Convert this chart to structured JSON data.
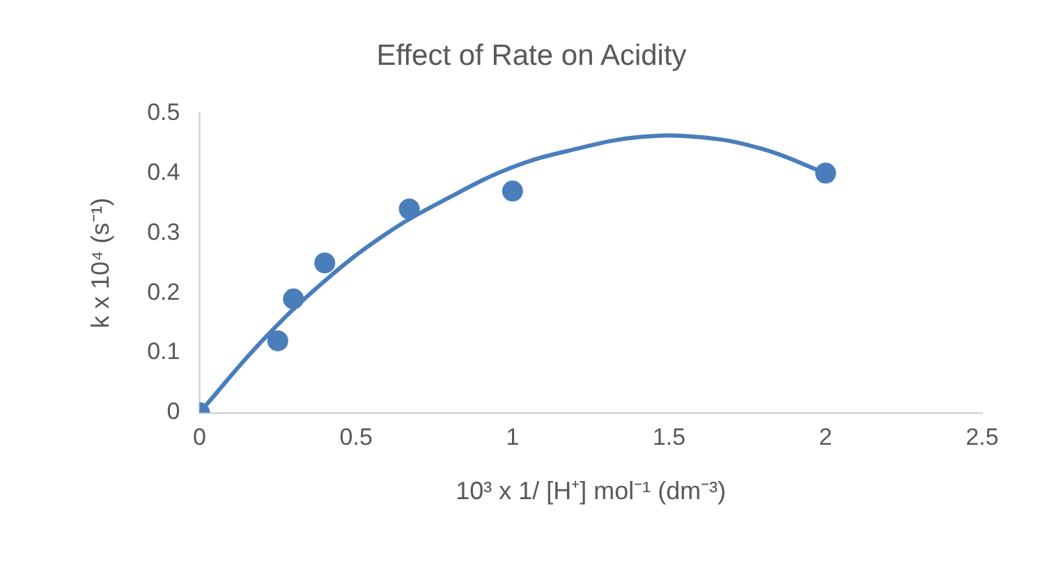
{
  "chart_data": {
    "type": "scatter",
    "title": "Effect of Rate on Acidity",
    "xlabel": "10³ x 1/ [H⁺] mol⁻¹ (dm⁻³)",
    "ylabel": "k x 10⁴ (s⁻¹)",
    "xlim": [
      0,
      2.5
    ],
    "xticks": [
      0,
      0.5,
      1,
      1.5,
      2,
      2.5
    ],
    "ylim": [
      0,
      0.5
    ],
    "yticks": [
      0,
      0.1,
      0.2,
      0.3,
      0.4,
      0.5
    ],
    "grid": false,
    "legend": false,
    "marker": "circle",
    "series": [
      {
        "color": "#4a7ebb",
        "x": [
          0,
          0.25,
          0.3,
          0.4,
          0.67,
          1,
          2
        ],
        "values": [
          0,
          0.12,
          0.19,
          0.25,
          0.34,
          0.37,
          0.4
        ]
      },
      {
        "type": "line",
        "color": "#4a7ebb",
        "marker": "none",
        "line_style": "solid",
        "x": [
          0,
          0.2,
          0.4,
          0.6,
          0.8,
          1,
          1.2,
          1.4,
          1.6,
          1.8,
          2
        ],
        "values": [
          0,
          0.12,
          0.22,
          0.3,
          0.36,
          0.41,
          0.44,
          0.46,
          0.46,
          0.44,
          0.4
        ]
      }
    ]
  }
}
